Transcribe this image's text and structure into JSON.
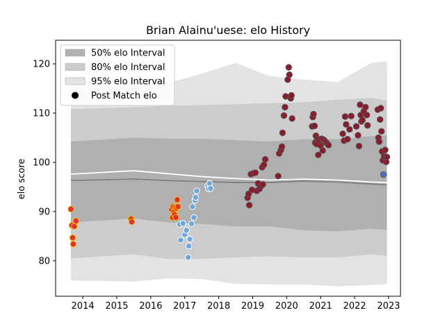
{
  "chart_data": {
    "type": "scatter",
    "title": "Brian Alainu'uese: elo History",
    "xlabel": "",
    "ylabel": "elo score",
    "xlim": [
      2013.2,
      2023.35
    ],
    "ylim": [
      72.8,
      124.8
    ],
    "x_ticks": [
      2014,
      2015,
      2016,
      2017,
      2018,
      2019,
      2020,
      2021,
      2022,
      2023
    ],
    "x_tick_labels": [
      "2014",
      "2015",
      "2016",
      "2017",
      "2018",
      "2019",
      "2020",
      "2021",
      "2022",
      "2023"
    ],
    "y_ticks": [
      80,
      90,
      100,
      110,
      120
    ],
    "y_tick_labels": [
      "80",
      "90",
      "100",
      "110",
      "120"
    ],
    "legend_position": "top-left",
    "legend": [
      "50% elo Interval",
      "80% elo Interval",
      "95% elo Interval",
      "Post Match elo"
    ],
    "colors": {
      "band50": "#b0b0b0",
      "band80": "#cccccc",
      "band95": "#e3e3e3",
      "median_line": "#7f7f7f",
      "mean_line": "#ffffff",
      "group1_fill": "#e03030",
      "group1_edge": "#f2c200",
      "group2_fill": "#6fa8dc",
      "group2_edge": "#ffffff",
      "group3_fill": "#8b1a2b",
      "group3_edge": "#555555",
      "group4_fill": "#4a72b8",
      "group4_edge": "#555555"
    },
    "intervals": {
      "x": [
        2013.65,
        2015.5,
        2016.5,
        2017.5,
        2018.5,
        2019.5,
        2020.5,
        2021.5,
        2022.5,
        2022.95
      ],
      "median": [
        96.3,
        96.6,
        96.3,
        96.1,
        95.9,
        95.9,
        96.2,
        96.0,
        95.6,
        95.4
      ],
      "mean": [
        97.6,
        98.3,
        97.7,
        97.1,
        96.7,
        96.4,
        96.6,
        96.4,
        96.0,
        95.9
      ],
      "p50_low": [
        87.8,
        88.6,
        87.8,
        87.5,
        87.0,
        87.0,
        86.2,
        86.0,
        86.5,
        86.3
      ],
      "p50_high": [
        104.2,
        105.0,
        104.8,
        104.8,
        104.5,
        104.2,
        104.7,
        104.7,
        105.3,
        105.5
      ],
      "p80_low": [
        80.5,
        81.3,
        80.4,
        80.4,
        80.7,
        80.9,
        80.7,
        80.7,
        81.3,
        81.0
      ],
      "p80_high": [
        110.8,
        111.2,
        111.5,
        111.6,
        111.8,
        112.0,
        112.2,
        112.7,
        113.1,
        112.5
      ],
      "p95_low": [
        76.0,
        75.8,
        76.4,
        76.3,
        75.3,
        75.2,
        75.2,
        74.8,
        75.1,
        75.2
      ],
      "p95_high": [
        116.2,
        117.1,
        116.1,
        118.0,
        120.2,
        117.5,
        116.8,
        116.3,
        120.2,
        120.5
      ]
    },
    "series": [
      {
        "points": [
          [
            2013.65,
            90.5
          ],
          [
            2013.68,
            87.2
          ],
          [
            2013.7,
            84.7
          ],
          [
            2013.72,
            83.4
          ],
          [
            2013.75,
            87.0
          ],
          [
            2013.8,
            88.1
          ],
          [
            2015.42,
            88.5
          ],
          [
            2015.44,
            87.9
          ],
          [
            2016.62,
            90.4
          ],
          [
            2016.64,
            88.8
          ],
          [
            2016.66,
            91.0
          ],
          [
            2016.68,
            89.9
          ],
          [
            2016.7,
            89.4
          ],
          [
            2016.72,
            90.9
          ],
          [
            2016.74,
            88.8
          ],
          [
            2016.76,
            90.7
          ],
          [
            2016.78,
            92.4
          ],
          [
            2016.8,
            91.0
          ]
        ]
      },
      {
        "points": [
          [
            2016.85,
            87.4
          ],
          [
            2016.88,
            84.2
          ],
          [
            2016.95,
            87.6
          ],
          [
            2017.0,
            85.3
          ],
          [
            2017.05,
            86.2
          ],
          [
            2017.1,
            80.7
          ],
          [
            2017.12,
            83.0
          ],
          [
            2017.15,
            84.4
          ],
          [
            2017.2,
            87.5
          ],
          [
            2017.23,
            91.0
          ],
          [
            2017.27,
            88.8
          ],
          [
            2017.3,
            92.3
          ],
          [
            2017.32,
            92.9
          ],
          [
            2017.35,
            94.2
          ],
          [
            2017.68,
            95.2
          ],
          [
            2017.7,
            94.6
          ],
          [
            2017.73,
            95.7
          ],
          [
            2017.76,
            94.7
          ]
        ]
      },
      {
        "points": [
          [
            2018.85,
            92.8
          ],
          [
            2018.88,
            93.6
          ],
          [
            2018.9,
            91.3
          ],
          [
            2018.95,
            97.6
          ],
          [
            2018.98,
            94.4
          ],
          [
            2019.03,
            97.8
          ],
          [
            2019.08,
            97.9
          ],
          [
            2019.12,
            94.2
          ],
          [
            2019.16,
            95.7
          ],
          [
            2019.2,
            94.6
          ],
          [
            2019.25,
            95.2
          ],
          [
            2019.28,
            99.0
          ],
          [
            2019.3,
            95.5
          ],
          [
            2019.33,
            99.5
          ],
          [
            2019.37,
            100.6
          ],
          [
            2019.75,
            97.2
          ],
          [
            2019.78,
            101.8
          ],
          [
            2019.83,
            102.5
          ],
          [
            2019.86,
            103.2
          ],
          [
            2019.88,
            106.0
          ],
          [
            2019.92,
            109.5
          ],
          [
            2019.95,
            111.2
          ],
          [
            2019.97,
            113.4
          ],
          [
            2020.03,
            116.8
          ],
          [
            2020.06,
            119.3
          ],
          [
            2020.08,
            117.8
          ],
          [
            2020.12,
            113.0
          ],
          [
            2020.14,
            113.6
          ],
          [
            2020.16,
            108.9
          ],
          [
            2020.75,
            107.3
          ],
          [
            2020.77,
            109.2
          ],
          [
            2020.79,
            109.8
          ],
          [
            2020.82,
            107.4
          ],
          [
            2020.84,
            104.0
          ],
          [
            2020.86,
            105.4
          ],
          [
            2020.88,
            103.7
          ],
          [
            2020.9,
            104.8
          ],
          [
            2020.93,
            101.5
          ],
          [
            2020.96,
            104.5
          ],
          [
            2021.0,
            103.4
          ],
          [
            2021.03,
            104.8
          ],
          [
            2021.06,
            102.4
          ],
          [
            2021.09,
            104.6
          ],
          [
            2021.13,
            104.3
          ],
          [
            2021.18,
            103.9
          ],
          [
            2021.23,
            103.5
          ],
          [
            2021.65,
            105.8
          ],
          [
            2021.69,
            104.4
          ],
          [
            2021.72,
            109.3
          ],
          [
            2021.75,
            107.7
          ],
          [
            2021.79,
            104.7
          ],
          [
            2021.85,
            106.7
          ],
          [
            2021.9,
            109.4
          ],
          [
            2022.05,
            107.3
          ],
          [
            2022.1,
            105.5
          ],
          [
            2022.13,
            103.3
          ],
          [
            2022.16,
            111.7
          ],
          [
            2022.18,
            109.6
          ],
          [
            2022.2,
            108.3
          ],
          [
            2022.23,
            108.6
          ],
          [
            2022.27,
            110.4
          ],
          [
            2022.32,
            111.2
          ],
          [
            2022.36,
            109.6
          ],
          [
            2022.38,
            107.5
          ],
          [
            2022.68,
            110.7
          ],
          [
            2022.7,
            105.0
          ],
          [
            2022.72,
            104.2
          ],
          [
            2022.75,
            108.7
          ],
          [
            2022.77,
            111.0
          ],
          [
            2022.79,
            106.3
          ],
          [
            2022.81,
            102.2
          ],
          [
            2022.83,
            100.4
          ],
          [
            2022.87,
            101.2
          ],
          [
            2022.9,
            102.5
          ],
          [
            2022.93,
            100.1
          ],
          [
            2022.95,
            101.1
          ]
        ]
      },
      {
        "points": [
          [
            2022.85,
            97.5
          ]
        ]
      }
    ]
  }
}
